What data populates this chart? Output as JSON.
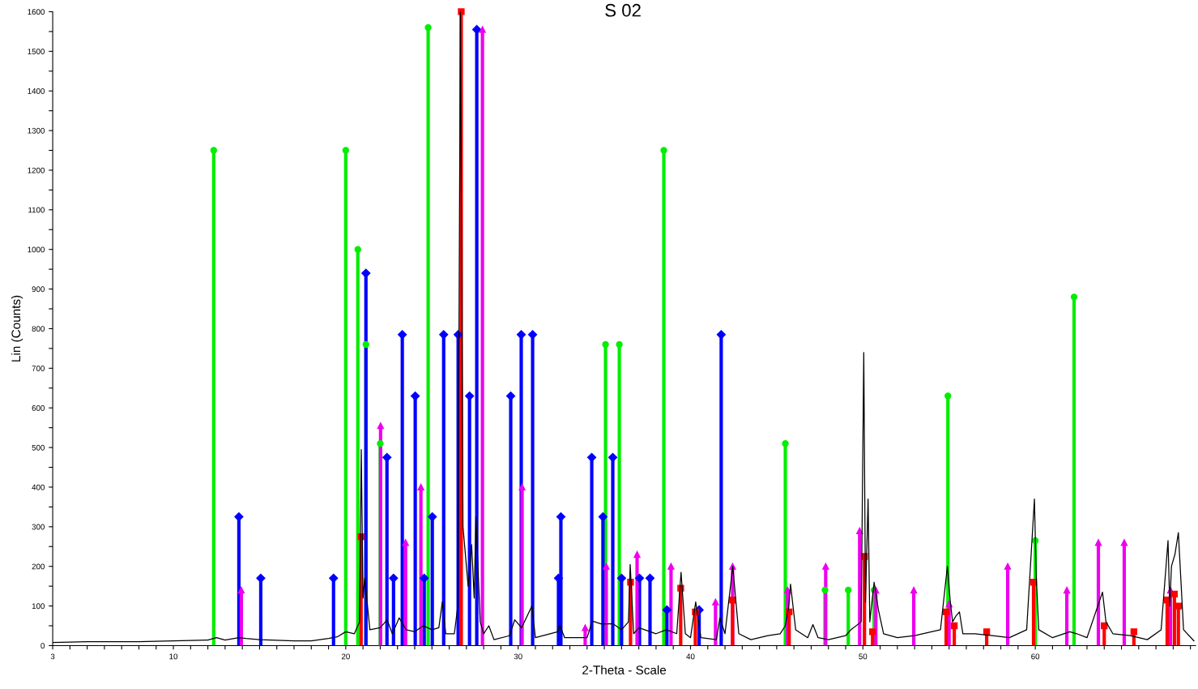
{
  "chart_data": {
    "type": "lollipop",
    "title": "S 02",
    "xlabel": "2-Theta - Scale",
    "ylabel": "Lin (Counts)",
    "xlim": [
      3,
      69.3
    ],
    "ylim": [
      0,
      1600
    ],
    "xticks": [
      3,
      {
        "value": 4,
        "label": null
      },
      {
        "value": 5,
        "label": null
      },
      {
        "value": 6,
        "label": null
      },
      {
        "value": 7,
        "label": null
      },
      {
        "value": 8,
        "label": null
      },
      {
        "value": 9,
        "label": null
      },
      10,
      {
        "value": 11,
        "label": null
      },
      {
        "value": 12,
        "label": null
      },
      {
        "value": 13,
        "label": null
      },
      {
        "value": 14,
        "label": null
      },
      {
        "value": 15,
        "label": null
      },
      {
        "value": 16,
        "label": null
      },
      {
        "value": 17,
        "label": null
      },
      {
        "value": 18,
        "label": null
      },
      {
        "value": 19,
        "label": null
      },
      20,
      {
        "value": 21,
        "label": null
      },
      {
        "value": 22,
        "label": null
      },
      {
        "value": 23,
        "label": null
      },
      {
        "value": 24,
        "label": null
      },
      {
        "value": 25,
        "label": null
      },
      {
        "value": 26,
        "label": null
      },
      {
        "value": 27,
        "label": null
      },
      {
        "value": 28,
        "label": null
      },
      {
        "value": 29,
        "label": null
      },
      30,
      {
        "value": 31,
        "label": null
      },
      {
        "value": 32,
        "label": null
      },
      {
        "value": 33,
        "label": null
      },
      {
        "value": 34,
        "label": null
      },
      {
        "value": 35,
        "label": null
      },
      {
        "value": 36,
        "label": null
      },
      {
        "value": 37,
        "label": null
      },
      {
        "value": 38,
        "label": null
      },
      {
        "value": 39,
        "label": null
      },
      40,
      {
        "value": 41,
        "label": null
      },
      {
        "value": 42,
        "label": null
      },
      {
        "value": 43,
        "label": null
      },
      {
        "value": 44,
        "label": null
      },
      {
        "value": 45,
        "label": null
      },
      {
        "value": 46,
        "label": null
      },
      {
        "value": 47,
        "label": null
      },
      {
        "value": 48,
        "label": null
      },
      {
        "value": 49,
        "label": null
      },
      50,
      {
        "value": 51,
        "label": null
      },
      {
        "value": 52,
        "label": null
      },
      {
        "value": 53,
        "label": null
      },
      {
        "value": 54,
        "label": null
      },
      {
        "value": 55,
        "label": null
      },
      {
        "value": 56,
        "label": null
      },
      {
        "value": 57,
        "label": null
      },
      {
        "value": 58,
        "label": null
      },
      {
        "value": 59,
        "label": null
      },
      60,
      {
        "value": 61,
        "label": null
      },
      {
        "value": 62,
        "label": null
      },
      {
        "value": 63,
        "label": null
      },
      {
        "value": 64,
        "label": null
      },
      {
        "value": 65,
        "label": null
      },
      {
        "value": 66,
        "label": null
      },
      {
        "value": 67,
        "label": null
      },
      {
        "value": 68,
        "label": null
      },
      {
        "value": 69,
        "label": null
      }
    ],
    "yticks": [
      0,
      {
        "value": 50,
        "label": null
      },
      100,
      {
        "value": 150,
        "label": null
      },
      200,
      {
        "value": 250,
        "label": null
      },
      300,
      {
        "value": 350,
        "label": null
      },
      400,
      {
        "value": 450,
        "label": null
      },
      500,
      {
        "value": 550,
        "label": null
      },
      600,
      {
        "value": 650,
        "label": null
      },
      700,
      {
        "value": 750,
        "label": null
      },
      800,
      {
        "value": 850,
        "label": null
      },
      900,
      {
        "value": 950,
        "label": null
      },
      1000,
      {
        "value": 1050,
        "label": null
      },
      1100,
      {
        "value": 1150,
        "label": null
      },
      1200,
      {
        "value": 1250,
        "label": null
      },
      1300,
      {
        "value": 1350,
        "label": null
      },
      1400,
      {
        "value": 1450,
        "label": null
      },
      1500,
      {
        "value": 1550,
        "label": null
      },
      1600
    ],
    "series": [
      {
        "type": "line",
        "color": "#000000",
        "marker": "none",
        "x": [
          3,
          5,
          8,
          10,
          12,
          12.5,
          13,
          13.8,
          14.2,
          15,
          17,
          18,
          19,
          19.5,
          20,
          20.5,
          20.8,
          20.9,
          21.0,
          21.1,
          21.4,
          22,
          22.4,
          22.7,
          23.1,
          23.5,
          24.0,
          24.5,
          25.0,
          25.4,
          25.6,
          25.8,
          26.3,
          26.5,
          26.65,
          26.8,
          27.1,
          27.3,
          27.45,
          27.55,
          27.8,
          28.0,
          28.3,
          28.6,
          29.5,
          29.8,
          30.2,
          30.8,
          31.0,
          32.3,
          32.4,
          32.7,
          34.0,
          34.3,
          34.8,
          35.5,
          36.0,
          36.4,
          36.5,
          36.7,
          37.0,
          38.0,
          38.6,
          39.2,
          39.45,
          39.7,
          40.0,
          40.3,
          40.6,
          41.5,
          41.7,
          42.0,
          42.45,
          42.8,
          43.5,
          44.5,
          45.2,
          45.5,
          45.7,
          45.8,
          46.1,
          46.8,
          47.1,
          47.4,
          48,
          49,
          49.3,
          49.9,
          50.05,
          50.15,
          50.3,
          50.4,
          50.65,
          50.9,
          51.2,
          52,
          53,
          54.5,
          54.9,
          55.05,
          55.2,
          55.4,
          55.6,
          55.8,
          56.5,
          57.5,
          58.5,
          59.5,
          59.95,
          60.05,
          60.2,
          61,
          62,
          62.4,
          63,
          63.9,
          64.1,
          64.5,
          65.5,
          66.5,
          67.3,
          67.7,
          67.8,
          67.9,
          68.1,
          68.3,
          68.6,
          69.2
        ],
        "values": [
          8,
          10,
          10,
          12,
          14,
          20,
          14,
          20,
          18,
          15,
          12,
          12,
          18,
          22,
          35,
          30,
          60,
          495,
          120,
          170,
          40,
          45,
          65,
          30,
          70,
          40,
          35,
          50,
          40,
          45,
          110,
          30,
          30,
          100,
          1600,
          300,
          150,
          255,
          120,
          325,
          60,
          30,
          50,
          15,
          25,
          65,
          45,
          100,
          20,
          35,
          52,
          20,
          20,
          62,
          55,
          55,
          40,
          60,
          205,
          30,
          45,
          30,
          40,
          30,
          185,
          30,
          20,
          110,
          20,
          15,
          70,
          30,
          200,
          30,
          15,
          25,
          30,
          50,
          100,
          155,
          40,
          20,
          53,
          20,
          15,
          25,
          40,
          60,
          740,
          110,
          370,
          60,
          160,
          90,
          30,
          20,
          25,
          40,
          200,
          120,
          60,
          75,
          85,
          30,
          30,
          25,
          20,
          40,
          370,
          180,
          40,
          20,
          35,
          30,
          20,
          135,
          60,
          30,
          25,
          15,
          40,
          265,
          100,
          200,
          230,
          285,
          40,
          12
        ]
      },
      {
        "color": "#00ee00",
        "marker": "circle",
        "x": [
          12.34,
          20.0,
          20.7,
          21.17,
          22.0,
          24.78,
          35.07,
          35.87,
          38.45,
          45.5,
          47.8,
          49.15,
          50.65,
          54.93,
          60.0,
          62.25
        ],
        "values": [
          1250,
          1250,
          1000,
          760,
          510,
          1560,
          760,
          760,
          1250,
          510,
          140,
          140,
          140,
          630,
          265,
          880
        ]
      },
      {
        "color": "#0000ff",
        "marker": "diamond",
        "x": [
          13.8,
          15.07,
          19.29,
          21.17,
          22.39,
          22.77,
          23.28,
          24.03,
          24.55,
          25.02,
          25.68,
          26.52,
          27.18,
          27.6,
          29.57,
          30.18,
          30.84,
          32.34,
          32.48,
          34.27,
          34.92,
          35.49,
          36.0,
          37.04,
          37.65,
          38.63,
          40.5,
          41.78
        ],
        "values": [
          325,
          170,
          170,
          940,
          475,
          170,
          785,
          630,
          170,
          325,
          785,
          785,
          630,
          1555,
          630,
          785,
          785,
          170,
          325,
          475,
          325,
          475,
          170,
          170,
          170,
          90,
          90,
          785
        ]
      },
      {
        "color": "#ee00ee",
        "marker": "triangle",
        "x": [
          13.94,
          22.02,
          23.47,
          24.36,
          27.93,
          30.23,
          33.89,
          35.11,
          36.9,
          38.87,
          41.45,
          42.44,
          45.63,
          47.84,
          49.81,
          50.75,
          52.95,
          55.0,
          58.4,
          61.83,
          63.66,
          65.16,
          67.84
        ],
        "values": [
          140,
          555,
          260,
          400,
          1555,
          400,
          45,
          200,
          230,
          200,
          110,
          200,
          140,
          200,
          290,
          140,
          140,
          105,
          200,
          140,
          260,
          260,
          140
        ]
      },
      {
        "color": "#ff0000",
        "marker": "square",
        "x": [
          20.89,
          26.7,
          36.52,
          39.43,
          40.28,
          42.44,
          45.72,
          50.09,
          50.56,
          54.83,
          55.3,
          57.18,
          59.9,
          64.0,
          65.72,
          67.65,
          68.07,
          68.3
        ],
        "values": [
          275,
          1600,
          160,
          145,
          85,
          115,
          85,
          225,
          35,
          85,
          50,
          35,
          160,
          50,
          35,
          115,
          130,
          100
        ]
      }
    ]
  }
}
